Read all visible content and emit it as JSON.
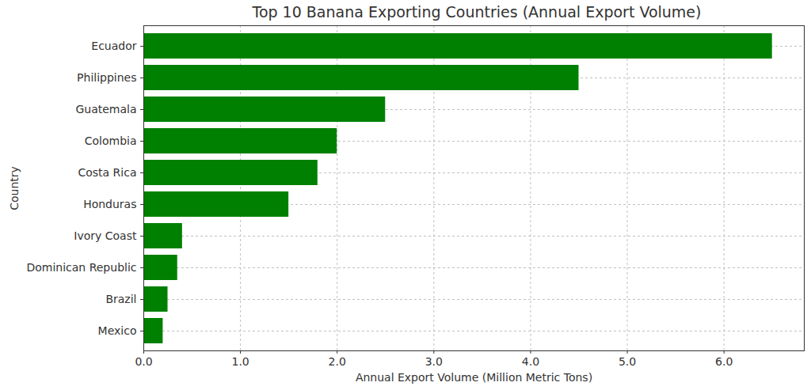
{
  "chart_data": {
    "type": "bar",
    "orientation": "horizontal",
    "title": "Top 10 Banana Exporting Countries (Annual Export Volume)",
    "x_label": "Annual Export Volume (Million Metric Tons)",
    "y_label": "Country",
    "categories": [
      "Ecuador",
      "Philippines",
      "Guatemala",
      "Colombia",
      "Costa Rica",
      "Honduras",
      "Ivory Coast",
      "Dominican Republic",
      "Brazil",
      "Mexico"
    ],
    "values": [
      6.5,
      4.5,
      2.5,
      2.0,
      1.8,
      1.5,
      0.4,
      0.35,
      0.25,
      0.2
    ],
    "color": "#008000",
    "xlim": [
      0,
      6.83
    ],
    "xticks": [
      0,
      1,
      2,
      3,
      4,
      5,
      6
    ],
    "grid": true
  }
}
